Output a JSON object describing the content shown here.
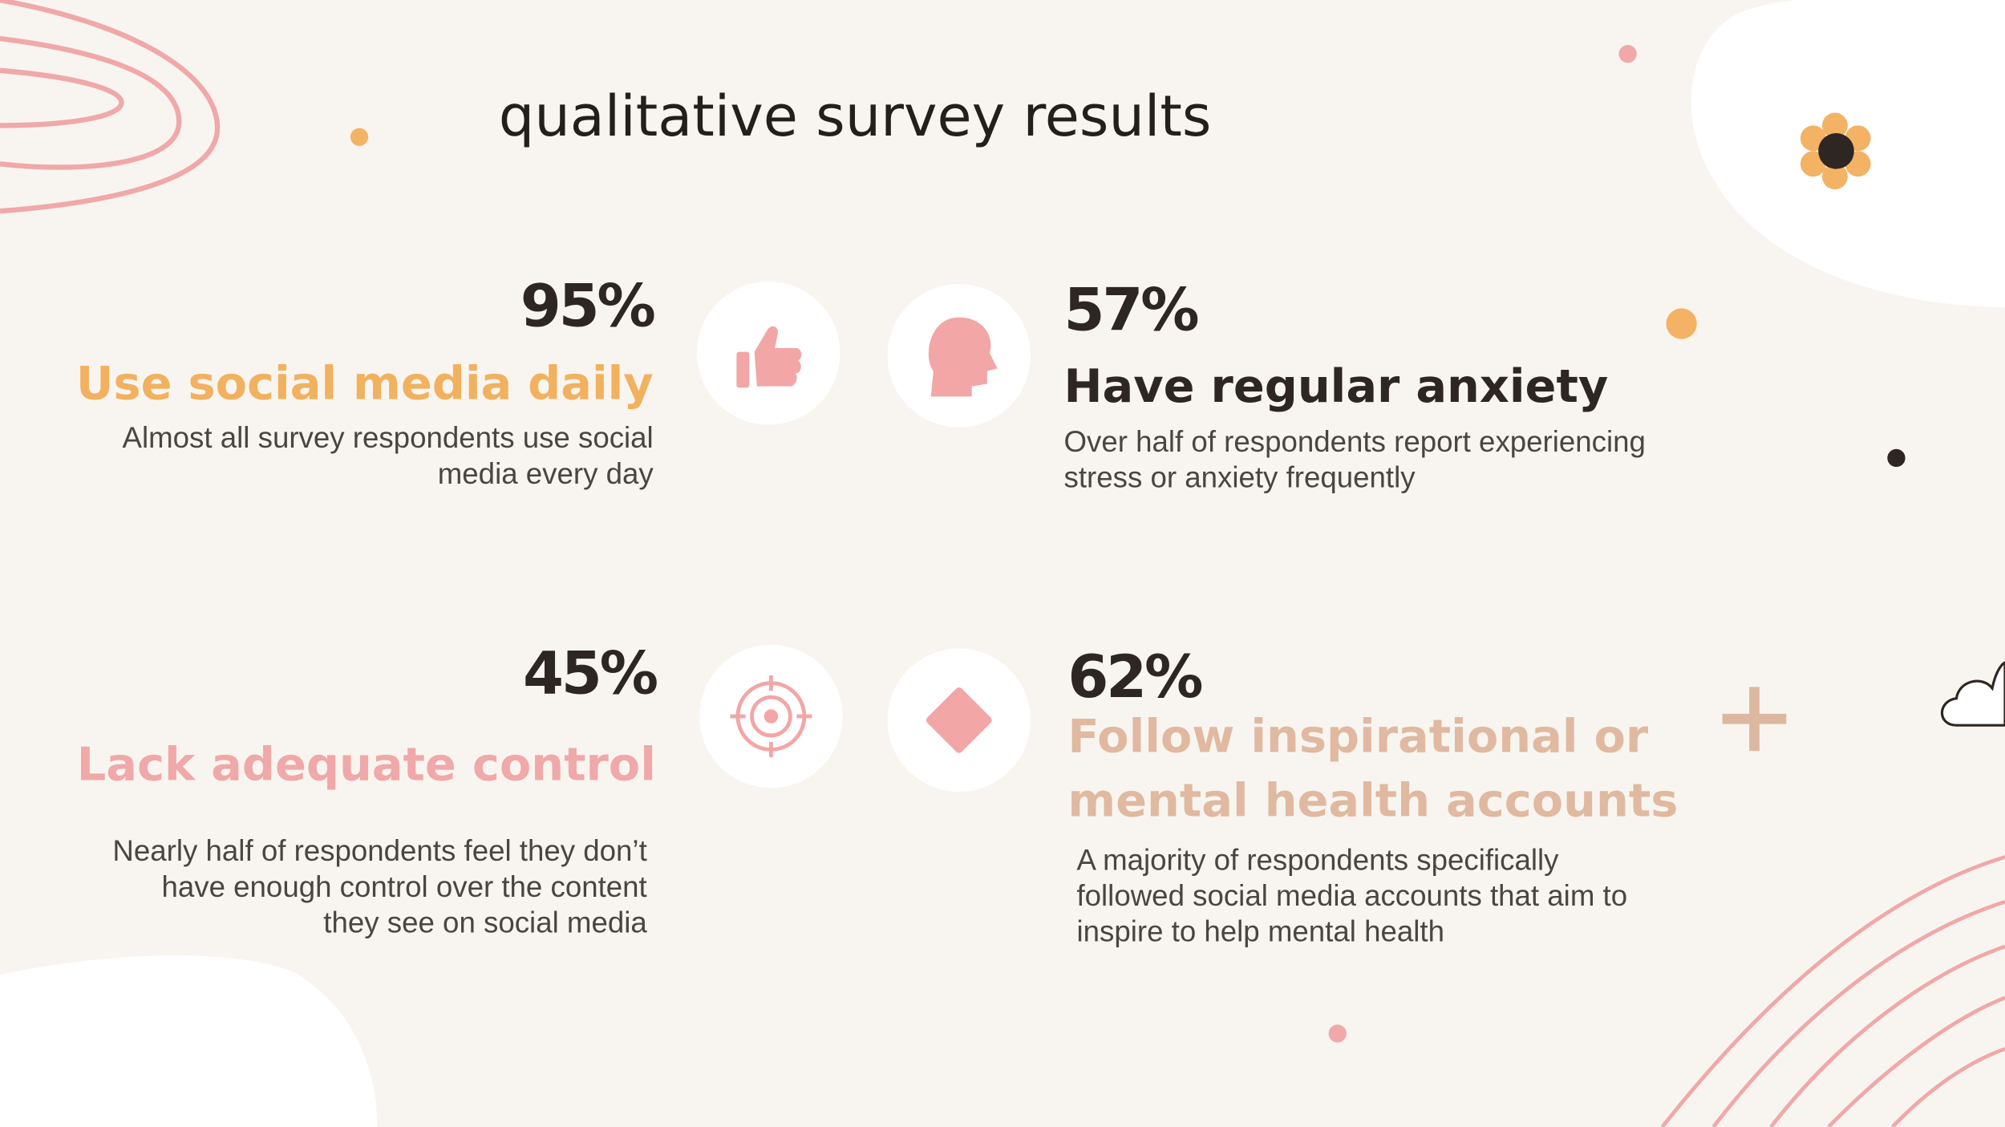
{
  "title": "qualitative survey results",
  "items": [
    {
      "stat": "95%",
      "heading": [
        "Use social media daily"
      ],
      "description": [
        "Almost all survey respondents use social",
        "media every day"
      ]
    },
    {
      "stat": "57%",
      "heading": [
        "Have regular anxiety"
      ],
      "description": [
        "Over half of respondents report experiencing",
        "stress or anxiety frequently"
      ]
    },
    {
      "stat": "45%",
      "heading": [
        "Lack adequate control"
      ],
      "description": [
        "Nearly half of respondents feel they don’t",
        "have enough control over the content",
        "they see  on social media"
      ]
    },
    {
      "stat": "62%",
      "heading": [
        "Follow inspirational or",
        "mental health accounts"
      ],
      "description": [
        "A majority of respondents specifically",
        "followed social media accounts that aim to",
        "inspire to help mental health"
      ]
    }
  ]
}
